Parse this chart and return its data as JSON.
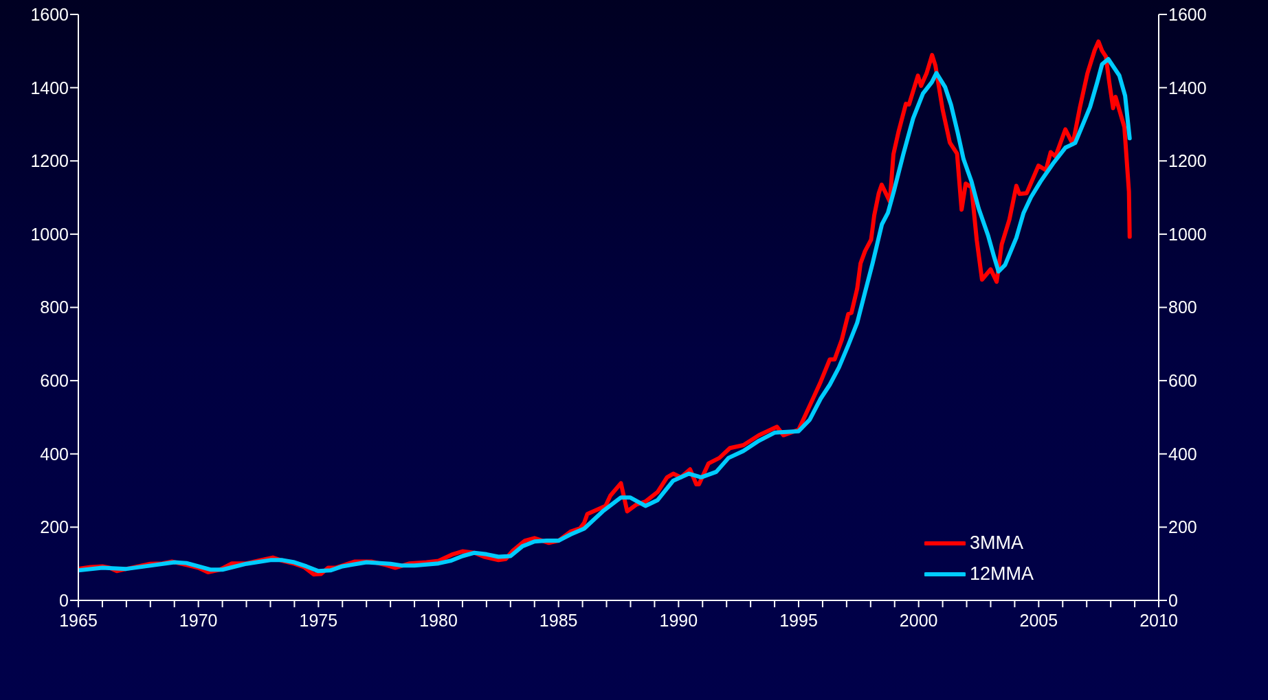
{
  "chart_data": {
    "type": "line",
    "xlim": [
      1965,
      2010
    ],
    "xticks": [
      1965,
      {
        "value": 1966,
        "label": null
      },
      {
        "value": 1967,
        "label": null
      },
      {
        "value": 1968,
        "label": null
      },
      {
        "value": 1969,
        "label": null
      },
      1970,
      {
        "value": 1971,
        "label": null
      },
      {
        "value": 1972,
        "label": null
      },
      {
        "value": 1973,
        "label": null
      },
      {
        "value": 1974,
        "label": null
      },
      1975,
      {
        "value": 1976,
        "label": null
      },
      {
        "value": 1977,
        "label": null
      },
      {
        "value": 1978,
        "label": null
      },
      {
        "value": 1979,
        "label": null
      },
      1980,
      {
        "value": 1981,
        "label": null
      },
      {
        "value": 1982,
        "label": null
      },
      {
        "value": 1983,
        "label": null
      },
      {
        "value": 1984,
        "label": null
      },
      1985,
      {
        "value": 1986,
        "label": null
      },
      {
        "value": 1987,
        "label": null
      },
      {
        "value": 1988,
        "label": null
      },
      {
        "value": 1989,
        "label": null
      },
      1990,
      {
        "value": 1991,
        "label": null
      },
      {
        "value": 1992,
        "label": null
      },
      {
        "value": 1993,
        "label": null
      },
      {
        "value": 1994,
        "label": null
      },
      1995,
      {
        "value": 1996,
        "label": null
      },
      {
        "value": 1997,
        "label": null
      },
      {
        "value": 1998,
        "label": null
      },
      {
        "value": 1999,
        "label": null
      },
      2000,
      {
        "value": 2001,
        "label": null
      },
      {
        "value": 2002,
        "label": null
      },
      {
        "value": 2003,
        "label": null
      },
      {
        "value": 2004,
        "label": null
      },
      2005,
      {
        "value": 2006,
        "label": null
      },
      {
        "value": 2007,
        "label": null
      },
      {
        "value": 2008,
        "label": null
      },
      {
        "value": 2009,
        "label": null
      },
      2010
    ],
    "ylim": [
      0,
      1600
    ],
    "yticks": [
      0,
      200,
      400,
      600,
      800,
      1000,
      1200,
      1400,
      1600
    ],
    "y2lim": [
      0,
      1600
    ],
    "y2ticks": [
      0,
      200,
      400,
      600,
      800,
      1000,
      1200,
      1400,
      1600
    ],
    "grid": false,
    "legend": "bottom right",
    "marker": "none",
    "line_style": "solid",
    "series": [
      {
        "name": "3MMA",
        "color": "#ff0000",
        "x": [
          1965,
          1965.5,
          1966,
          1966.3,
          1966.6,
          1967,
          1967.5,
          1968,
          1968.5,
          1968.9,
          1969.5,
          1970,
          1970.4,
          1970.9,
          1971.4,
          1972,
          1972.6,
          1973.1,
          1973.5,
          1974,
          1974.4,
          1974.8,
          1975.1,
          1975.4,
          1975.7,
          1976,
          1976.5,
          1977.2,
          1977.8,
          1978.2,
          1978.8,
          1979.5,
          1980,
          1980.6,
          1981,
          1981.5,
          1981.9,
          1982.5,
          1982.8,
          1983.1,
          1983.6,
          1984,
          1984.6,
          1985,
          1985.5,
          1985.9,
          1986.07,
          1986.2,
          1986.96,
          1987.16,
          1987.6,
          1987.86,
          1988.25,
          1988.62,
          1989.13,
          1989.52,
          1989.78,
          1990.1,
          1990.48,
          1990.74,
          1990.85,
          1991.25,
          1991.7,
          1992.14,
          1992.7,
          1993.35,
          1994.1,
          1994.37,
          1995.0,
          1995.27,
          1995.6,
          1995.92,
          1996.3,
          1996.5,
          1996.8,
          1997.07,
          1997.2,
          1997.44,
          1997.58,
          1997.77,
          1998.02,
          1998.15,
          1998.34,
          1998.46,
          1998.8,
          1998.95,
          1999.16,
          1999.47,
          1999.6,
          1999.97,
          2000.1,
          2000.33,
          2000.56,
          2000.7,
          2001.0,
          2001.3,
          2001.6,
          2001.79,
          2001.96,
          2002.2,
          2002.42,
          2002.64,
          2003.0,
          2003.25,
          2003.46,
          2003.78,
          2004.07,
          2004.2,
          2004.5,
          2004.99,
          2005.3,
          2005.5,
          2005.7,
          2006.11,
          2006.42,
          2006.72,
          2007.03,
          2007.33,
          2007.49,
          2007.64,
          2007.8,
          2007.94,
          2008.1,
          2008.2,
          2008.57,
          2008.76,
          2008.79
        ],
        "values": [
          86,
          91,
          93,
          89,
          80,
          86,
          93,
          100,
          101,
          106,
          97,
          89,
          77,
          84,
          101,
          101,
          110,
          117,
          108,
          100,
          91,
          71,
          72,
          89,
          89,
          95,
          106,
          106,
          97,
          89,
          101,
          104,
          108,
          126,
          134,
          130,
          119,
          110,
          113,
          136,
          163,
          170,
          157,
          163,
          188,
          197,
          212,
          236,
          258,
          286,
          320,
          243,
          262,
          270,
          296,
          336,
          346,
          336,
          358,
          317,
          317,
          374,
          389,
          416,
          424,
          451,
          474,
          451,
          466,
          504,
          551,
          597,
          658,
          658,
          712,
          782,
          785,
          851,
          920,
          954,
          985,
          1051,
          1112,
          1135,
          1089,
          1218,
          1279,
          1356,
          1354,
          1433,
          1405,
          1439,
          1489,
          1460,
          1340,
          1250,
          1220,
          1067,
          1138,
          1128,
          984,
          876,
          904,
          870,
          972,
          1040,
          1132,
          1110,
          1112,
          1187,
          1175,
          1224,
          1212,
          1286,
          1246,
          1347,
          1439,
          1502,
          1526,
          1501,
          1485,
          1415,
          1344,
          1375,
          1292,
          1116,
          993
        ]
      },
      {
        "name": "12MMA",
        "color": "#00ccff",
        "x": [
          1965,
          1966,
          1967,
          1968,
          1969,
          1969.5,
          1970,
          1970.5,
          1971,
          1972,
          1973,
          1973.5,
          1974,
          1974.5,
          1975,
          1975.5,
          1976,
          1977,
          1978,
          1978.5,
          1979,
          1980,
          1980.5,
          1981,
          1981.5,
          1982,
          1982.5,
          1983,
          1983.5,
          1984,
          1984.5,
          1985,
          1985.5,
          1986.07,
          1986.84,
          1987.6,
          1987.98,
          1988.62,
          1989.13,
          1989.78,
          1990.43,
          1990.94,
          1991.57,
          1992.08,
          1992.7,
          1993.35,
          1994.0,
          1995.0,
          1995.46,
          1995.92,
          1996.3,
          1996.68,
          1997.07,
          1997.44,
          1997.77,
          1998.08,
          1998.47,
          1998.72,
          1998.98,
          1999.36,
          1999.77,
          2000.18,
          2000.55,
          2000.74,
          2001.1,
          2001.35,
          2001.62,
          2001.87,
          2002.2,
          2002.5,
          2002.89,
          2003.13,
          2003.33,
          2003.6,
          2004.07,
          2004.37,
          2004.68,
          2005.08,
          2005.6,
          2006.11,
          2006.52,
          2006.83,
          2007.14,
          2007.44,
          2007.64,
          2007.9,
          2008.36,
          2008.6,
          2008.79
        ],
        "values": [
          82,
          89,
          86,
          95,
          104,
          102,
          93,
          84,
          84,
          100,
          110,
          110,
          104,
          93,
          80,
          82,
          93,
          104,
          100,
          95,
          95,
          101,
          108,
          121,
          130,
          126,
          119,
          121,
          148,
          161,
          163,
          163,
          180,
          196,
          243,
          281,
          281,
          258,
          274,
          327,
          346,
          336,
          351,
          389,
          408,
          436,
          458,
          462,
          493,
          551,
          589,
          636,
          697,
          758,
          842,
          920,
          1027,
          1058,
          1120,
          1218,
          1316,
          1384,
          1415,
          1440,
          1402,
          1353,
          1279,
          1205,
          1144,
          1070,
          997,
          941,
          898,
          916,
          990,
          1058,
          1101,
          1144,
          1193,
          1236,
          1249,
          1298,
          1347,
          1415,
          1464,
          1478,
          1433,
          1378,
          1262
        ]
      }
    ]
  }
}
